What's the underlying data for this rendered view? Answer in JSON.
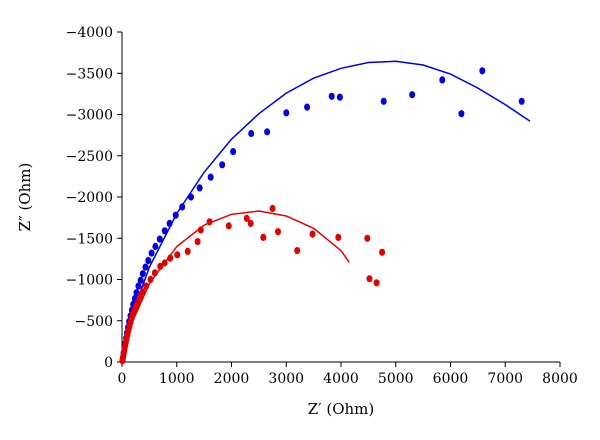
{
  "chart_data": {
    "type": "scatter",
    "title": "",
    "xlabel": "Z′ (Ohm)",
    "ylabel": "Z″ (Ohm)",
    "xlim": [
      0,
      8000
    ],
    "ylim": [
      0,
      -4000
    ],
    "y_axis_inverted": true,
    "grid": false,
    "legend": "none",
    "x_ticks": [
      "0",
      "1000",
      "2000",
      "3000",
      "4000",
      "5000",
      "6000",
      "7000",
      "8000"
    ],
    "y_ticks": [
      "0",
      "−500",
      "−1000",
      "−1500",
      "−2000",
      "−2500",
      "−3000",
      "−3500",
      "−4000"
    ],
    "series": [
      {
        "color": "#0000e0",
        "points": [
          [
            10,
            -20
          ],
          [
            20,
            -60
          ],
          [
            30,
            -110
          ],
          [
            45,
            -170
          ],
          [
            60,
            -230
          ],
          [
            75,
            -290
          ],
          [
            90,
            -350
          ],
          [
            110,
            -420
          ],
          [
            130,
            -490
          ],
          [
            155,
            -560
          ],
          [
            180,
            -630
          ],
          [
            205,
            -700
          ],
          [
            235,
            -770
          ],
          [
            265,
            -840
          ],
          [
            300,
            -920
          ],
          [
            340,
            -990
          ],
          [
            380,
            -1070
          ],
          [
            430,
            -1150
          ],
          [
            480,
            -1230
          ],
          [
            540,
            -1320
          ],
          [
            610,
            -1400
          ],
          [
            690,
            -1490
          ],
          [
            780,
            -1590
          ],
          [
            870,
            -1680
          ],
          [
            980,
            -1780
          ],
          [
            1100,
            -1880
          ],
          [
            1260,
            -2000
          ],
          [
            1420,
            -2110
          ],
          [
            1620,
            -2240
          ],
          [
            1830,
            -2390
          ],
          [
            2030,
            -2550
          ],
          [
            2360,
            -2770
          ],
          [
            2650,
            -2790
          ],
          [
            3000,
            -3020
          ],
          [
            3380,
            -3090
          ],
          [
            3830,
            -3220
          ],
          [
            3980,
            -3210
          ],
          [
            4780,
            -3160
          ],
          [
            5300,
            -3240
          ],
          [
            5850,
            -3420
          ],
          [
            6200,
            -3010
          ],
          [
            6580,
            -3530
          ],
          [
            7300,
            -3160
          ]
        ],
        "fit": [
          [
            0,
            0
          ],
          [
            200,
            -600
          ],
          [
            500,
            -1150
          ],
          [
            1000,
            -1800
          ],
          [
            1500,
            -2300
          ],
          [
            2000,
            -2700
          ],
          [
            2500,
            -3010
          ],
          [
            3000,
            -3260
          ],
          [
            3500,
            -3440
          ],
          [
            4000,
            -3560
          ],
          [
            4500,
            -3630
          ],
          [
            5000,
            -3645
          ],
          [
            5500,
            -3600
          ],
          [
            6000,
            -3490
          ],
          [
            6500,
            -3320
          ],
          [
            7000,
            -3120
          ],
          [
            7450,
            -2920
          ]
        ]
      },
      {
        "color": "#e00000",
        "points": [
          [
            8,
            -15
          ],
          [
            15,
            -45
          ],
          [
            25,
            -80
          ],
          [
            35,
            -120
          ],
          [
            48,
            -160
          ],
          [
            60,
            -200
          ],
          [
            72,
            -240
          ],
          [
            85,
            -285
          ],
          [
            100,
            -330
          ],
          [
            118,
            -380
          ],
          [
            135,
            -430
          ],
          [
            155,
            -480
          ],
          [
            175,
            -530
          ],
          [
            200,
            -580
          ],
          [
            225,
            -630
          ],
          [
            255,
            -680
          ],
          [
            290,
            -730
          ],
          [
            330,
            -790
          ],
          [
            380,
            -850
          ],
          [
            440,
            -920
          ],
          [
            520,
            -1000
          ],
          [
            600,
            -1080
          ],
          [
            700,
            -1160
          ],
          [
            780,
            -1200
          ],
          [
            880,
            -1260
          ],
          [
            1010,
            -1300
          ],
          [
            1200,
            -1340
          ],
          [
            1380,
            -1460
          ],
          [
            1440,
            -1600
          ],
          [
            1600,
            -1700
          ],
          [
            1950,
            -1650
          ],
          [
            2280,
            -1740
          ],
          [
            2350,
            -1680
          ],
          [
            2580,
            -1510
          ],
          [
            2750,
            -1860
          ],
          [
            2850,
            -1580
          ],
          [
            3200,
            -1350
          ],
          [
            3480,
            -1550
          ],
          [
            3950,
            -1510
          ],
          [
            4480,
            -1500
          ],
          [
            4520,
            -1010
          ],
          [
            4650,
            -960
          ],
          [
            4750,
            -1330
          ]
        ],
        "fit": [
          [
            0,
            0
          ],
          [
            200,
            -500
          ],
          [
            500,
            -950
          ],
          [
            1000,
            -1400
          ],
          [
            1500,
            -1660
          ],
          [
            2000,
            -1790
          ],
          [
            2500,
            -1830
          ],
          [
            3000,
            -1770
          ],
          [
            3500,
            -1620
          ],
          [
            4000,
            -1350
          ],
          [
            4150,
            -1210
          ]
        ]
      }
    ]
  }
}
